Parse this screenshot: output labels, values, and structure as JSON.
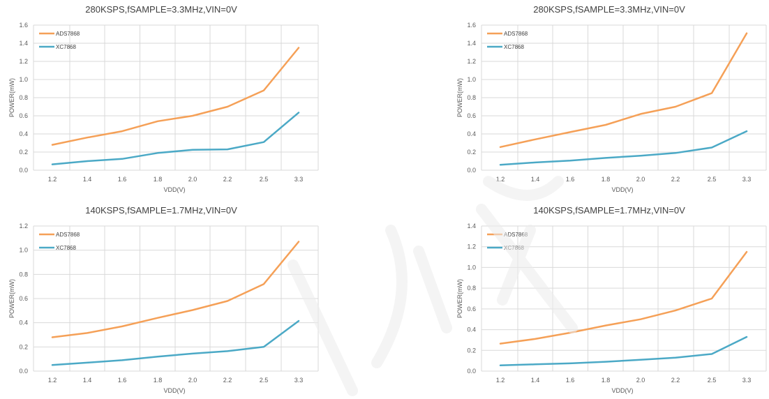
{
  "colors": {
    "ads": "#f5a057",
    "xc": "#4ba9c6",
    "grid": "#d9d9d9"
  },
  "chart_data": [
    {
      "type": "line",
      "title": "280KSPS,fSAMPLE=3.3MHz,VIN=0V",
      "xlabel": "VDD(V)",
      "ylabel": "POWER(mW)",
      "categories": [
        "1.2",
        "1.4",
        "1.6",
        "1.8",
        "2.0",
        "2.2",
        "2.5",
        "3.3"
      ],
      "ylim": [
        0,
        1.6
      ],
      "yticks": [
        "0.0",
        "0.2",
        "0.4",
        "0.6",
        "0.8",
        "1.0",
        "1.2",
        "1.4",
        "1.6"
      ],
      "grid": true,
      "legend": "top-left",
      "series": [
        {
          "name": "ADS7868",
          "values": [
            0.28,
            0.36,
            0.43,
            0.54,
            0.6,
            0.7,
            0.88,
            1.35
          ]
        },
        {
          "name": "XC7868",
          "values": [
            0.065,
            0.1,
            0.125,
            0.19,
            0.225,
            0.23,
            0.31,
            0.635
          ]
        }
      ]
    },
    {
      "type": "line",
      "title": "280KSPS,fSAMPLE=3.3MHz,VIN=0V",
      "xlabel": "VDD(V)",
      "ylabel": "POWER(mW)",
      "categories": [
        "1.2",
        "1.4",
        "1.6",
        "1.8",
        "2.0",
        "2.2",
        "2.5",
        "3.3"
      ],
      "ylim": [
        0,
        1.6
      ],
      "yticks": [
        "0.0",
        "0.2",
        "0.4",
        "0.6",
        "0.8",
        "1.0",
        "1.2",
        "1.4",
        "1.6"
      ],
      "grid": true,
      "legend": "top-left",
      "series": [
        {
          "name": "ADS7868",
          "values": [
            0.255,
            0.34,
            0.42,
            0.5,
            0.62,
            0.7,
            0.85,
            1.51
          ]
        },
        {
          "name": "XC7868",
          "values": [
            0.06,
            0.085,
            0.105,
            0.135,
            0.16,
            0.19,
            0.25,
            0.43
          ]
        }
      ]
    },
    {
      "type": "line",
      "title": "140KSPS,fSAMPLE=1.7MHz,VIN=0V",
      "xlabel": "VDD(V)",
      "ylabel": "POWER(mW)",
      "categories": [
        "1.2",
        "1.4",
        "1.6",
        "1.8",
        "2.0",
        "2.2",
        "2.5",
        "3.3"
      ],
      "ylim": [
        0,
        1.2
      ],
      "yticks": [
        "0.0",
        "0.2",
        "0.4",
        "0.6",
        "0.8",
        "1.0",
        "1.2"
      ],
      "grid": true,
      "legend": "top-left",
      "series": [
        {
          "name": "ADS7868",
          "values": [
            0.28,
            0.315,
            0.37,
            0.44,
            0.505,
            0.58,
            0.72,
            1.07
          ]
        },
        {
          "name": "XC7868",
          "values": [
            0.05,
            0.07,
            0.09,
            0.12,
            0.145,
            0.165,
            0.2,
            0.415
          ]
        }
      ]
    },
    {
      "type": "line",
      "title": "140KSPS,fSAMPLE=1.7MHz,VIN=0V",
      "xlabel": "VDD(V)",
      "ylabel": "POWER(mW)",
      "categories": [
        "1.2",
        "1.4",
        "1.6",
        "1.8",
        "2.0",
        "2.2",
        "2.5",
        "3.3"
      ],
      "ylim": [
        0,
        1.4
      ],
      "yticks": [
        "0.0",
        "0.2",
        "0.4",
        "0.6",
        "0.8",
        "1.0",
        "1.2",
        "1.4"
      ],
      "grid": true,
      "legend": "top-left",
      "series": [
        {
          "name": "ADS7868",
          "values": [
            0.265,
            0.31,
            0.37,
            0.44,
            0.5,
            0.585,
            0.7,
            1.15
          ]
        },
        {
          "name": "XC7868",
          "values": [
            0.055,
            0.065,
            0.075,
            0.09,
            0.11,
            0.13,
            0.165,
            0.33
          ]
        }
      ]
    }
  ]
}
